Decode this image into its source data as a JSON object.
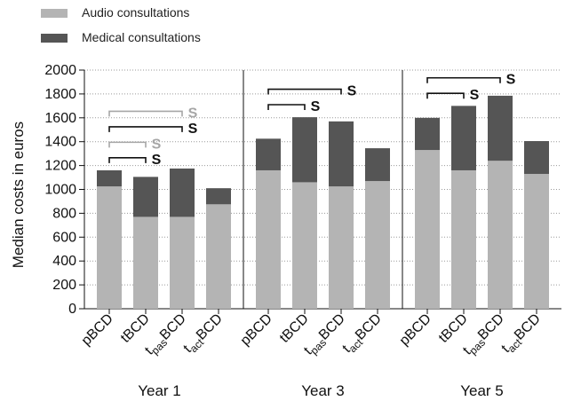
{
  "chart_data": {
    "type": "bar",
    "stacked": true,
    "ylabel": "Median costs in euros",
    "ylim": [
      0,
      2000
    ],
    "yticks": [
      0,
      200,
      400,
      600,
      800,
      1000,
      1200,
      1400,
      1600,
      1800,
      2000
    ],
    "grid": "dotted horizontal",
    "legend": "top-left",
    "series": [
      {
        "name": "Audio consultations",
        "color": "#b4b4b4"
      },
      {
        "name": "Medical consultations",
        "color": "#555555"
      }
    ],
    "panels": [
      {
        "label": "Year 1",
        "categories": [
          "pBCD",
          "tBCD",
          "tpasBCD",
          "tactBCD"
        ],
        "audio": [
          1025,
          770,
          770,
          875
        ],
        "medical": [
          135,
          335,
          405,
          135
        ],
        "significance": [
          {
            "from": 0,
            "to": 1,
            "label": "S",
            "series": "Medical consultations"
          },
          {
            "from": 0,
            "to": 1,
            "label": "S",
            "series": "Audio consultations"
          },
          {
            "from": 0,
            "to": 2,
            "label": "S",
            "series": "Medical consultations"
          },
          {
            "from": 0,
            "to": 2,
            "label": "S",
            "series": "Audio consultations"
          }
        ]
      },
      {
        "label": "Year 3",
        "categories": [
          "pBCD",
          "tBCD",
          "tpasBCD",
          "tactBCD"
        ],
        "audio": [
          1160,
          1060,
          1025,
          1070
        ],
        "medical": [
          265,
          545,
          545,
          275
        ],
        "significance": [
          {
            "from": 0,
            "to": 1,
            "label": "S",
            "series": "Medical consultations"
          },
          {
            "from": 0,
            "to": 2,
            "label": "S",
            "series": "Medical consultations"
          }
        ]
      },
      {
        "label": "Year 5",
        "categories": [
          "pBCD",
          "tBCD",
          "tpasBCD",
          "tactBCD"
        ],
        "audio": [
          1330,
          1160,
          1240,
          1130
        ],
        "medical": [
          270,
          540,
          545,
          275
        ],
        "significance": [
          {
            "from": 0,
            "to": 1,
            "label": "S",
            "series": "Medical consultations"
          },
          {
            "from": 0,
            "to": 2,
            "label": "S",
            "series": "Medical consultations"
          }
        ]
      }
    ]
  }
}
